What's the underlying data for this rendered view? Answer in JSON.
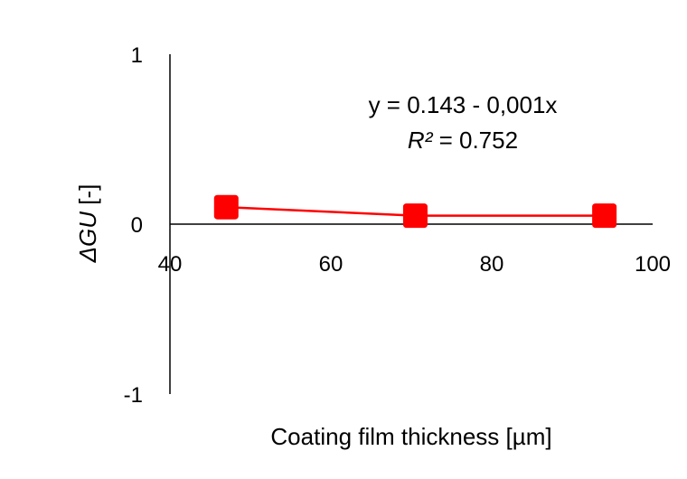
{
  "chart_data": {
    "type": "line",
    "title": "",
    "xlabel": "Coating film thickness [µm]",
    "ylabel_italic": "ΔGU",
    "ylabel_unit": " [-]",
    "xlim": [
      40,
      100
    ],
    "ylim": [
      -1,
      1
    ],
    "x_ticks": [
      40,
      60,
      80,
      100
    ],
    "y_ticks": [
      -1,
      0,
      1
    ],
    "grid": false,
    "legend": "none",
    "series": [
      {
        "color": "#ff0000",
        "marker": "square",
        "points": [
          {
            "x": 47,
            "y": 0.1
          },
          {
            "x": 70.5,
            "y": 0.05
          },
          {
            "x": 94,
            "y": 0.05
          }
        ]
      }
    ],
    "annotation": {
      "equation": "y = 0.143 - 0,001x",
      "r2_label": "R²",
      "r2_value": " = 0.752"
    }
  }
}
